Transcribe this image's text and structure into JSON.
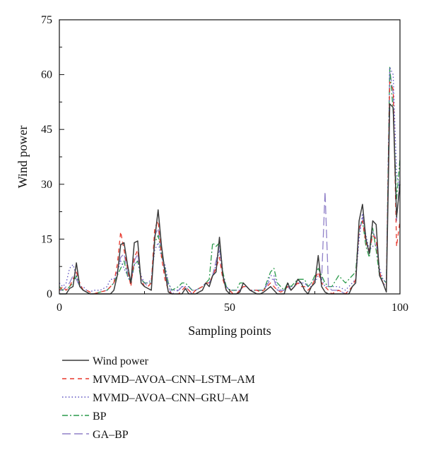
{
  "chart_data": {
    "type": "line",
    "xlabel": "Sampling points",
    "ylabel": "Wind power",
    "xlim": [
      0,
      100
    ],
    "ylim": [
      0,
      75
    ],
    "xticks": [
      0,
      50,
      100
    ],
    "yticks": [
      0,
      15,
      30,
      45,
      60,
      75
    ],
    "grid": false,
    "legend_position": "below",
    "series": [
      {
        "name": "Wind power",
        "color": "#3a3a3a",
        "dash": "solid",
        "x": [
          0,
          1,
          2,
          3,
          4,
          5,
          6,
          7,
          8,
          9,
          10,
          12,
          14,
          15,
          16,
          17,
          18,
          19,
          20,
          21,
          22,
          23,
          24,
          25,
          26,
          27,
          28,
          29,
          30,
          31,
          32,
          33,
          35,
          36,
          37,
          38,
          39,
          40,
          42,
          43,
          44,
          45,
          46,
          47,
          48,
          49,
          50,
          51,
          52,
          53,
          54,
          55,
          56,
          57,
          58,
          59,
          60,
          62,
          63,
          64,
          65,
          66,
          67,
          68,
          69,
          70,
          71,
          72,
          73,
          74,
          75,
          76,
          77,
          78,
          79,
          80,
          82,
          84,
          85,
          86,
          87,
          88,
          89,
          90,
          91,
          92,
          93,
          94,
          95,
          96,
          97,
          98,
          99,
          100
        ],
        "y": [
          0,
          0,
          0,
          1.5,
          2,
          8.5,
          2,
          1,
          0.5,
          0,
          0,
          0,
          0,
          0,
          1,
          5,
          13.5,
          14,
          8,
          3,
          14,
          14.5,
          3,
          2,
          1.5,
          1,
          15,
          23,
          13,
          6,
          0.5,
          0,
          0,
          0,
          1.5,
          0,
          0,
          0,
          1,
          3,
          2,
          5,
          6,
          15.5,
          5,
          1,
          0,
          0,
          0,
          0.5,
          3,
          2,
          1,
          0.5,
          0,
          0,
          0.5,
          2,
          1,
          0,
          0,
          0,
          3,
          1,
          2,
          4,
          3,
          1,
          0,
          2,
          3,
          10.5,
          2,
          0.5,
          0,
          0,
          0,
          0,
          0,
          2,
          3,
          20,
          24.5,
          15,
          11,
          20,
          19,
          5,
          3,
          0.5,
          52,
          51,
          21,
          30
        ]
      },
      {
        "name": "MVMD–AVOA–CNN–LSTM–AM",
        "color": "#e8372c",
        "dash": "6,5",
        "x": [
          0,
          1,
          2,
          3,
          4,
          5,
          6,
          7,
          8,
          9,
          10,
          12,
          14,
          15,
          16,
          17,
          18,
          19,
          20,
          21,
          22,
          23,
          24,
          25,
          26,
          27,
          28,
          29,
          30,
          31,
          32,
          33,
          35,
          36,
          37,
          38,
          39,
          40,
          42,
          43,
          44,
          45,
          46,
          47,
          48,
          49,
          50,
          51,
          52,
          53,
          54,
          55,
          56,
          57,
          58,
          59,
          60,
          62,
          63,
          64,
          65,
          66,
          67,
          68,
          69,
          70,
          71,
          72,
          73,
          74,
          75,
          76,
          77,
          78,
          79,
          80,
          82,
          84,
          85,
          86,
          87,
          88,
          89,
          90,
          91,
          92,
          93,
          94,
          95,
          96,
          97,
          98,
          99,
          100
        ],
        "y": [
          1,
          2,
          1,
          2,
          4,
          6,
          3,
          1,
          1,
          0.5,
          0,
          0.5,
          1,
          2,
          3,
          8,
          17,
          12,
          7,
          2,
          10,
          12,
          4,
          2,
          2,
          3,
          18,
          20,
          10,
          4,
          1,
          0,
          0,
          1,
          2,
          1,
          0,
          1,
          2,
          3,
          3,
          5,
          7,
          10,
          4,
          1,
          1,
          0,
          0,
          1,
          2,
          2,
          1,
          1,
          1,
          0.5,
          1,
          3,
          2,
          1,
          0.5,
          1,
          2,
          1,
          2,
          3,
          2,
          2,
          1,
          2,
          4,
          6,
          3,
          2,
          1,
          0,
          1,
          0,
          1,
          2,
          4,
          18,
          20,
          14,
          12,
          16,
          15,
          6,
          3,
          2,
          58,
          56,
          13,
          20
        ]
      },
      {
        "name": "MVMD–AVOA–CNN–GRU–AM",
        "color": "#5a4fc0",
        "dash": "1.5,3",
        "x": [
          0,
          1,
          2,
          3,
          4,
          5,
          6,
          7,
          8,
          9,
          10,
          12,
          14,
          15,
          16,
          17,
          18,
          19,
          20,
          21,
          22,
          23,
          24,
          25,
          26,
          27,
          28,
          29,
          30,
          31,
          32,
          33,
          35,
          36,
          37,
          38,
          39,
          40,
          42,
          43,
          44,
          45,
          46,
          47,
          48,
          49,
          50,
          51,
          52,
          53,
          54,
          55,
          56,
          57,
          58,
          59,
          60,
          62,
          63,
          64,
          65,
          66,
          67,
          68,
          69,
          70,
          71,
          72,
          73,
          74,
          75,
          76,
          77,
          78,
          79,
          80,
          82,
          84,
          85,
          86,
          87,
          88,
          89,
          90,
          91,
          92,
          93,
          94,
          95,
          96,
          97,
          98,
          99,
          100
        ],
        "y": [
          3,
          2,
          3,
          7,
          8,
          5,
          2,
          2,
          1,
          0.5,
          1,
          1,
          2,
          4,
          4,
          6,
          9,
          7,
          5,
          3,
          8,
          9,
          5,
          3,
          3,
          4,
          12,
          14,
          10,
          8,
          3,
          1,
          1,
          2,
          2,
          2,
          1,
          1,
          2,
          3,
          3,
          5,
          8,
          12,
          5,
          2,
          1,
          1,
          1,
          1,
          2,
          2,
          1,
          1,
          1,
          1,
          1,
          5,
          5,
          2,
          1,
          1,
          2,
          2,
          2,
          3,
          3,
          3,
          2,
          2,
          3,
          5,
          4,
          2,
          2,
          2,
          2,
          1,
          2,
          3,
          4,
          15,
          22,
          16,
          12,
          13,
          14,
          7,
          4,
          3,
          62,
          60,
          33,
          28
        ]
      },
      {
        "name": "BP",
        "color": "#2a9a4a",
        "dash": "8,3,2,3",
        "x": [
          0,
          1,
          2,
          3,
          4,
          5,
          6,
          7,
          8,
          9,
          10,
          12,
          14,
          15,
          16,
          17,
          18,
          19,
          20,
          21,
          22,
          23,
          24,
          25,
          26,
          27,
          28,
          29,
          30,
          31,
          32,
          33,
          35,
          36,
          37,
          38,
          39,
          40,
          42,
          43,
          44,
          45,
          46,
          47,
          48,
          49,
          50,
          51,
          52,
          53,
          54,
          55,
          56,
          57,
          58,
          59,
          60,
          62,
          63,
          64,
          65,
          66,
          67,
          68,
          69,
          70,
          71,
          72,
          73,
          74,
          75,
          76,
          77,
          78,
          79,
          80,
          82,
          84,
          85,
          86,
          87,
          88,
          89,
          90,
          91,
          92,
          93,
          94,
          95,
          96,
          97,
          98,
          99,
          100
        ],
        "y": [
          2,
          1,
          1,
          2,
          3,
          5,
          2,
          1,
          0.5,
          0,
          0,
          0.5,
          1,
          2,
          3,
          5,
          7,
          9,
          5,
          3,
          8,
          9,
          4,
          3,
          3,
          3,
          14,
          16,
          11,
          7,
          3,
          1,
          2,
          3,
          3,
          2,
          1,
          1,
          2,
          3,
          4,
          14,
          13,
          14,
          6,
          2,
          1,
          1,
          1,
          3,
          3,
          2,
          1,
          1,
          1,
          1,
          1,
          6,
          7,
          3,
          2,
          1,
          3,
          2,
          3,
          4,
          4,
          4,
          2,
          3,
          5,
          7,
          5,
          3,
          2,
          2,
          5,
          3,
          4,
          5,
          6,
          18,
          20,
          13,
          10,
          18,
          12,
          5,
          4,
          3,
          62,
          50,
          26,
          37
        ]
      },
      {
        "name": "GA–BP",
        "color": "#9080c8",
        "dash": "12,5",
        "x": [
          0,
          1,
          2,
          3,
          4,
          5,
          6,
          7,
          8,
          9,
          10,
          12,
          14,
          15,
          16,
          17,
          18,
          19,
          20,
          21,
          22,
          23,
          24,
          25,
          26,
          27,
          28,
          29,
          30,
          31,
          32,
          33,
          35,
          36,
          37,
          38,
          39,
          40,
          42,
          43,
          44,
          45,
          46,
          47,
          48,
          49,
          50,
          51,
          52,
          53,
          54,
          55,
          56,
          57,
          58,
          59,
          60,
          62,
          63,
          64,
          65,
          66,
          67,
          68,
          69,
          70,
          71,
          72,
          73,
          74,
          75,
          76,
          77,
          78,
          79,
          80,
          82,
          84,
          85,
          86,
          87,
          88,
          89,
          90,
          91,
          92,
          93,
          94,
          95,
          96,
          97,
          98,
          99,
          100
        ],
        "y": [
          1,
          1,
          2,
          3,
          5,
          4,
          2,
          1,
          0.5,
          0,
          0,
          0.5,
          1,
          2,
          3,
          6,
          10,
          11,
          6,
          3,
          9,
          11,
          4,
          3,
          2,
          3,
          16,
          18,
          11,
          6,
          2,
          0,
          1,
          2,
          2,
          1,
          0,
          1,
          2,
          3,
          3,
          5,
          9,
          13,
          5,
          2,
          1,
          0,
          0,
          1,
          2,
          2,
          1,
          1,
          1,
          1,
          1,
          4,
          4,
          1,
          1,
          1,
          2,
          1,
          2,
          3,
          3,
          3,
          2,
          3,
          4,
          6,
          4,
          28,
          2,
          1,
          1,
          0,
          1,
          2,
          3,
          17,
          21,
          15,
          11,
          17,
          15,
          6,
          3,
          2,
          61,
          55,
          20,
          32
        ]
      }
    ]
  }
}
